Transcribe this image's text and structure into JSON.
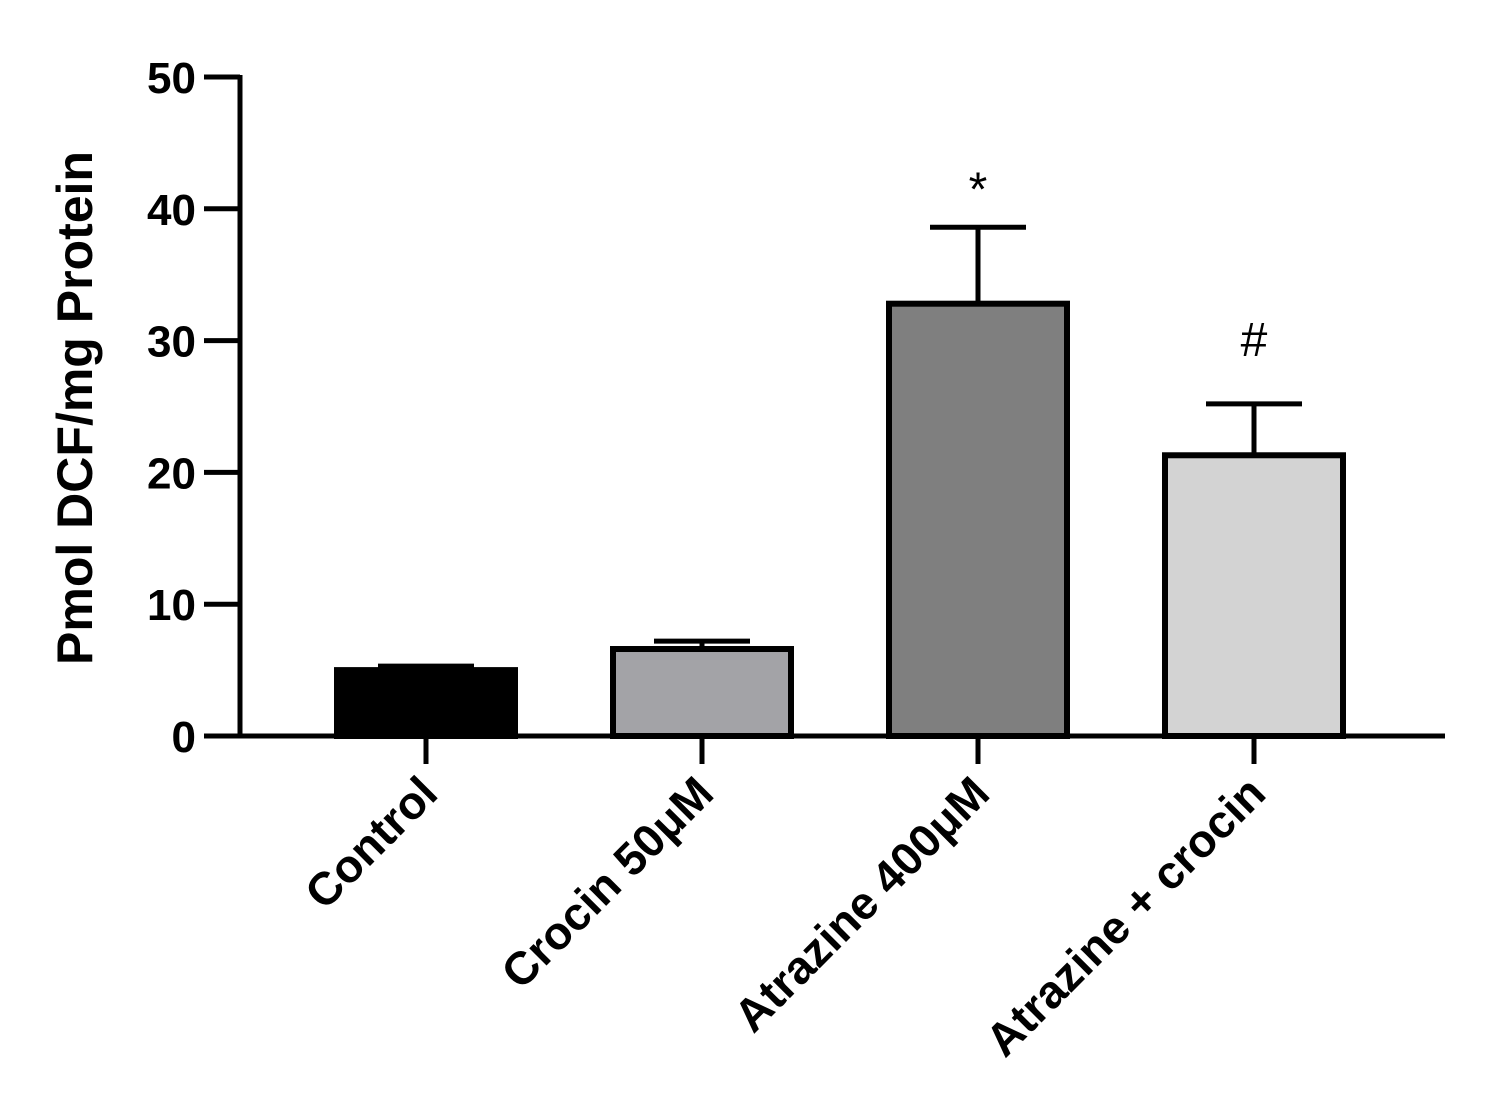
{
  "chart_data": {
    "type": "bar",
    "categories": [
      "Control",
      "Crocin 50μM",
      "Atrazine 400μM",
      "Atrazine + crocin"
    ],
    "values": [
      5.0,
      6.6,
      32.8,
      21.3
    ],
    "errors": [
      0.3,
      0.6,
      5.8,
      3.9
    ],
    "colors": [
      "#000000",
      "#a3a3a7",
      "#7f7f7f",
      "#d3d3d3"
    ],
    "annotations": [
      "",
      "",
      "*",
      "#"
    ],
    "title": "",
    "xlabel": "",
    "ylabel": "Pmol DCF/mg Protein",
    "ylim": [
      0,
      50
    ],
    "yticks": [
      "0",
      "10",
      "20",
      "30",
      "40",
      "50"
    ],
    "grid": false
  }
}
